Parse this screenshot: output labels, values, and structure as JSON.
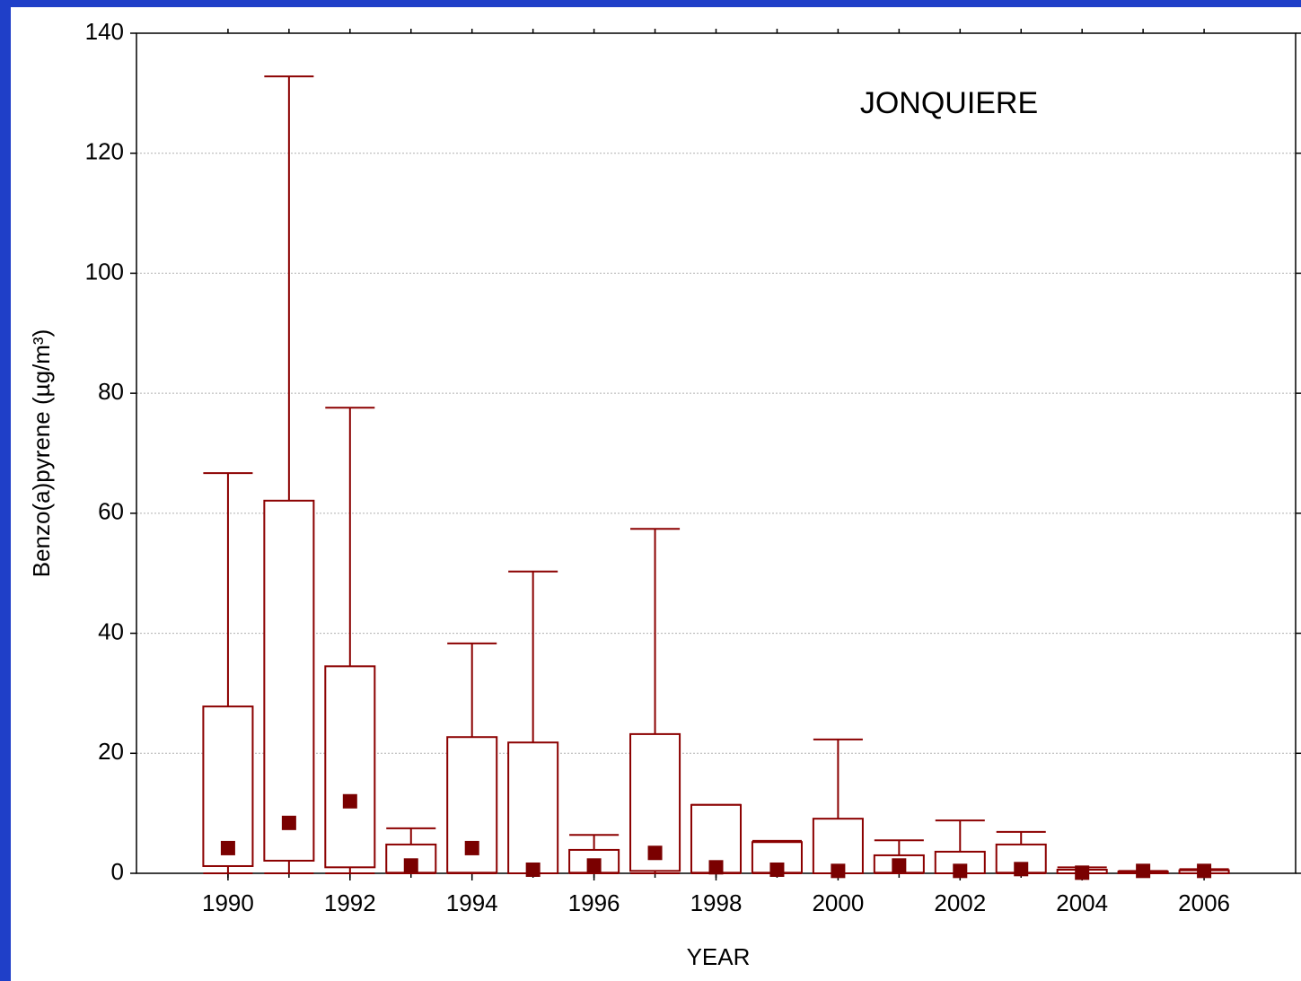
{
  "chart_data": {
    "type": "box",
    "title": "JONQUIERE",
    "x_label": "YEAR",
    "y_label": "Benzo(a)pyrene (µg/m³)",
    "x": [
      1990,
      1991,
      1992,
      1993,
      1994,
      1995,
      1996,
      1997,
      1998,
      1999,
      2000,
      2001,
      2002,
      2003,
      2004,
      2005,
      2006
    ],
    "min": [
      0,
      0,
      0,
      0,
      0,
      0,
      0,
      0,
      0,
      0,
      0,
      0,
      0,
      0,
      0,
      0,
      0
    ],
    "q1": [
      1.2,
      2.1,
      1.0,
      0.1,
      0.1,
      0,
      0.1,
      0.4,
      0.1,
      0.1,
      0,
      0.1,
      0,
      0.1,
      0,
      0,
      0
    ],
    "q3": [
      27.8,
      62.1,
      34.5,
      4.8,
      22.7,
      21.8,
      3.9,
      23.2,
      11.4,
      5.2,
      9.1,
      3.0,
      3.6,
      4.8,
      0.6,
      0.3,
      0.5
    ],
    "max": [
      66.7,
      132.8,
      77.6,
      7.5,
      38.3,
      50.3,
      6.4,
      57.4,
      11.4,
      5.4,
      22.3,
      5.5,
      8.8,
      6.9,
      1.0,
      0.4,
      0.7
    ],
    "mean": [
      4.2,
      8.4,
      12.0,
      1.3,
      4.2,
      0.6,
      1.3,
      3.4,
      1.0,
      0.6,
      0.4,
      1.3,
      0.4,
      0.7,
      0.1,
      0.4,
      0.4
    ],
    "color": "#8b0000",
    "mean_color": "#7a0000",
    "xlim": [
      1988.5,
      2007.5
    ],
    "xticks": [
      1990,
      1992,
      1994,
      1996,
      1998,
      2000,
      2002,
      2004,
      2006
    ],
    "ylim": [
      0,
      140
    ],
    "yticks": [
      0,
      20,
      40,
      60,
      80,
      100,
      120,
      140
    ],
    "grid": true
  }
}
